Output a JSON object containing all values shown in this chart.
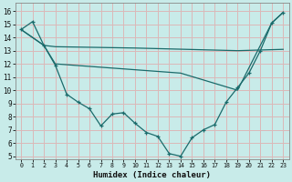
{
  "xlabel": "Humidex (Indice chaleur)",
  "bg_color": "#c8ebe9",
  "grid_color": "#dbb8b8",
  "line_color": "#1a6b6b",
  "xlim": [
    -0.5,
    23.5
  ],
  "ylim": [
    4.8,
    16.6
  ],
  "xticks": [
    0,
    1,
    2,
    3,
    4,
    5,
    6,
    7,
    8,
    9,
    10,
    11,
    12,
    13,
    14,
    15,
    16,
    17,
    18,
    19,
    20,
    21,
    22,
    23
  ],
  "yticks": [
    5,
    6,
    7,
    8,
    9,
    10,
    11,
    12,
    13,
    14,
    15,
    16
  ],
  "line1_x": [
    0,
    1,
    2,
    3,
    4,
    5,
    6,
    7,
    8,
    9,
    10,
    11,
    12,
    13,
    14,
    15,
    16,
    17,
    18,
    19,
    20,
    21,
    22,
    23
  ],
  "line1_y": [
    14.6,
    15.2,
    13.4,
    11.9,
    9.7,
    9.1,
    8.6,
    7.3,
    8.2,
    8.3,
    7.5,
    6.8,
    6.5,
    5.2,
    5.0,
    6.4,
    7.0,
    7.4,
    9.1,
    10.2,
    11.3,
    13.0,
    15.1,
    15.9
  ],
  "line2_x": [
    0,
    2,
    3,
    10,
    19,
    23
  ],
  "line2_y": [
    14.6,
    13.4,
    13.3,
    13.2,
    13.0,
    13.1
  ],
  "line3_x": [
    0,
    2,
    3,
    14,
    19,
    22,
    23
  ],
  "line3_y": [
    14.6,
    13.4,
    12.0,
    11.3,
    10.0,
    15.1,
    15.9
  ]
}
